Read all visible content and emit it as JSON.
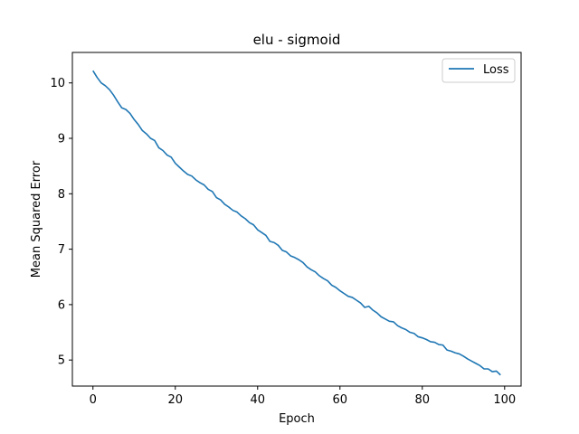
{
  "chart_data": {
    "type": "line",
    "title": "elu - sigmoid",
    "xlabel": "Epoch",
    "ylabel": "Mean Squared Error",
    "xlim": [
      -5,
      104
    ],
    "ylim": [
      4.53,
      10.55
    ],
    "xticks": [
      0,
      20,
      40,
      60,
      80,
      100
    ],
    "yticks": [
      5,
      6,
      7,
      8,
      9,
      10
    ],
    "grid": false,
    "legend_position": "top-right",
    "series": [
      {
        "name": "Loss",
        "color": "#1f77b4",
        "x": [
          0,
          1,
          2,
          3,
          4,
          5,
          6,
          7,
          8,
          9,
          10,
          11,
          12,
          13,
          14,
          15,
          16,
          17,
          18,
          19,
          20,
          21,
          22,
          23,
          24,
          25,
          26,
          27,
          28,
          29,
          30,
          31,
          32,
          33,
          34,
          35,
          36,
          37,
          38,
          39,
          40,
          41,
          42,
          43,
          44,
          45,
          46,
          47,
          48,
          49,
          50,
          51,
          52,
          53,
          54,
          55,
          56,
          57,
          58,
          59,
          60,
          61,
          62,
          63,
          64,
          65,
          66,
          67,
          68,
          69,
          70,
          71,
          72,
          73,
          74,
          75,
          76,
          77,
          78,
          79,
          80,
          81,
          82,
          83,
          84,
          85,
          86,
          87,
          88,
          89,
          90,
          91,
          92,
          93,
          94,
          95,
          96,
          97,
          98,
          99
        ],
        "y": [
          10.22,
          10.1,
          10.0,
          9.95,
          9.88,
          9.78,
          9.66,
          9.55,
          9.52,
          9.45,
          9.34,
          9.25,
          9.14,
          9.08,
          9.0,
          8.96,
          8.83,
          8.78,
          8.7,
          8.66,
          8.55,
          8.48,
          8.41,
          8.35,
          8.32,
          8.25,
          8.2,
          8.16,
          8.08,
          8.04,
          7.93,
          7.89,
          7.81,
          7.76,
          7.7,
          7.67,
          7.6,
          7.55,
          7.48,
          7.44,
          7.35,
          7.3,
          7.25,
          7.14,
          7.12,
          7.07,
          6.98,
          6.95,
          6.88,
          6.85,
          6.81,
          6.76,
          6.68,
          6.63,
          6.59,
          6.52,
          6.47,
          6.43,
          6.35,
          6.31,
          6.25,
          6.2,
          6.15,
          6.13,
          6.08,
          6.03,
          5.95,
          5.97,
          5.9,
          5.85,
          5.78,
          5.74,
          5.7,
          5.69,
          5.62,
          5.58,
          5.55,
          5.5,
          5.48,
          5.42,
          5.4,
          5.37,
          5.33,
          5.32,
          5.28,
          5.27,
          5.18,
          5.16,
          5.13,
          5.11,
          5.07,
          5.02,
          4.98,
          4.94,
          4.9,
          4.84,
          4.84,
          4.79,
          4.8,
          4.73
        ]
      }
    ]
  }
}
